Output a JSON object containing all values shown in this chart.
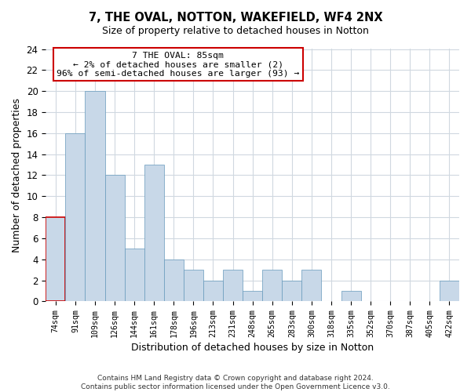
{
  "title": "7, THE OVAL, NOTTON, WAKEFIELD, WF4 2NX",
  "subtitle": "Size of property relative to detached houses in Notton",
  "xlabel": "Distribution of detached houses by size in Notton",
  "ylabel": "Number of detached properties",
  "bar_color": "#c8d8e8",
  "bar_edge_color": "#6699bb",
  "highlight_bar_edge_color": "#cc0000",
  "categories": [
    "74sqm",
    "91sqm",
    "109sqm",
    "126sqm",
    "144sqm",
    "161sqm",
    "178sqm",
    "196sqm",
    "213sqm",
    "231sqm",
    "248sqm",
    "265sqm",
    "283sqm",
    "300sqm",
    "318sqm",
    "335sqm",
    "352sqm",
    "370sqm",
    "387sqm",
    "405sqm",
    "422sqm"
  ],
  "values": [
    8,
    16,
    20,
    12,
    5,
    13,
    4,
    3,
    2,
    3,
    1,
    3,
    2,
    3,
    0,
    1,
    0,
    0,
    0,
    0,
    2
  ],
  "highlight_index": 0,
  "ylim": [
    0,
    24
  ],
  "yticks": [
    0,
    2,
    4,
    6,
    8,
    10,
    12,
    14,
    16,
    18,
    20,
    22,
    24
  ],
  "annotation_title": "7 THE OVAL: 85sqm",
  "annotation_line1": "← 2% of detached houses are smaller (2)",
  "annotation_line2": "96% of semi-detached houses are larger (93) →",
  "footer1": "Contains HM Land Registry data © Crown copyright and database right 2024.",
  "footer2": "Contains public sector information licensed under the Open Government Licence v3.0.",
  "background_color": "#ffffff",
  "grid_color": "#d0d8e0"
}
